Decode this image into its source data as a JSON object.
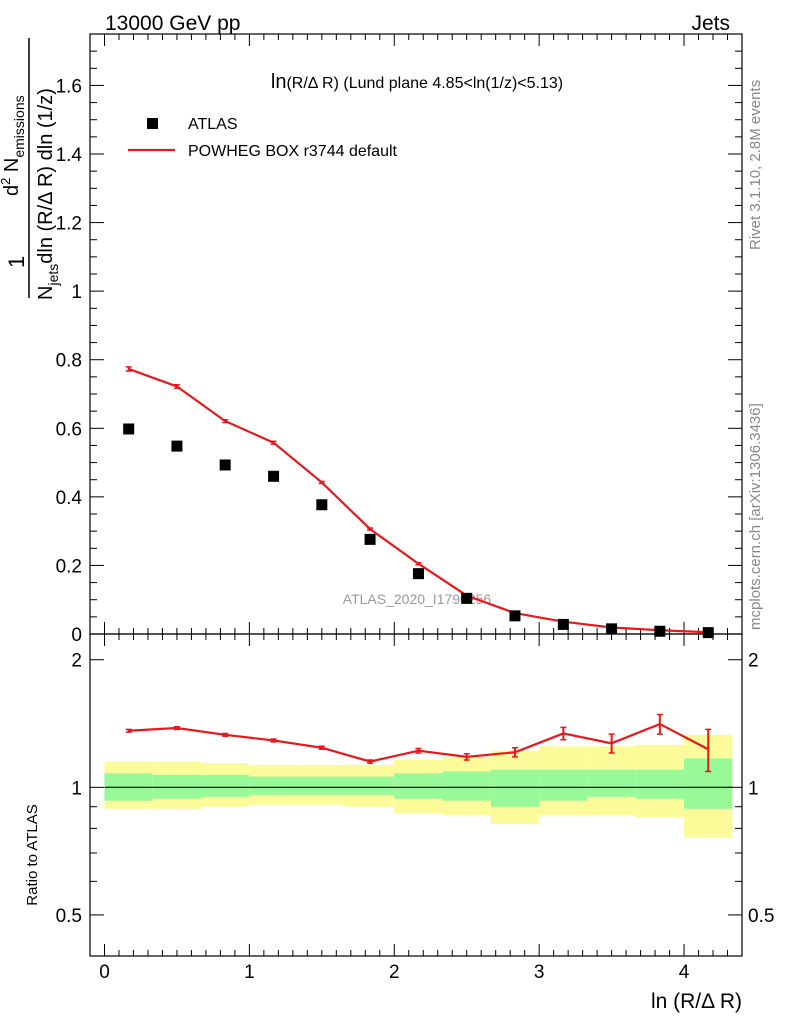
{
  "header": {
    "left": "13000 GeV pp",
    "right": "Jets"
  },
  "chart_data": {
    "type": "scatter",
    "title_main": "ln",
    "title_rest": "(R/Δ R) (Lund plane 4.85<ln(1/z)<5.13)",
    "watermark": "ATLAS_2020_I1790256",
    "side_label_top": "Rivet 3.1.10,  2.8M events",
    "side_label_bottom": "mcplots.cern.ch [arXiv:1306.3436]",
    "xlabel": "ln (R/Δ R)",
    "ylabel_top": {
      "one": "1",
      "n": "N",
      "jets": "jets",
      "denom_rest": "dln (R/Δ R) dln (1/z)",
      "num_d": "d",
      "num_sup": "2",
      "num_n": " N",
      "emissions": "emissions"
    },
    "ylabel_ratio": "Ratio to ATLAS",
    "xlim": [
      -0.1,
      4.4
    ],
    "ylim_main": [
      0,
      1.75
    ],
    "ylim_ratio": [
      0.4,
      2.3
    ],
    "x_ticks": [
      "0",
      "1",
      "2",
      "3",
      "4"
    ],
    "y_ticks_main": [
      "0",
      "0.2",
      "0.4",
      "0.6",
      "0.8",
      "1",
      "1.2",
      "1.4",
      "1.6"
    ],
    "y_ticks_ratio": [
      "0.5",
      "1",
      "2"
    ],
    "legend": {
      "data_label": "ATLAS",
      "mc_label": "POWHEG BOX r3744 default"
    },
    "colors": {
      "mc": "#e8171b",
      "band_inner": "#98f999",
      "band_outer": "#fbfb99",
      "data": "#000000"
    },
    "bins": [
      [
        0.0,
        0.333
      ],
      [
        0.333,
        0.667
      ],
      [
        0.667,
        1.0
      ],
      [
        1.0,
        1.333
      ],
      [
        1.333,
        1.667
      ],
      [
        1.667,
        2.0
      ],
      [
        2.0,
        2.333
      ],
      [
        2.333,
        2.667
      ],
      [
        2.667,
        3.0
      ],
      [
        3.0,
        3.333
      ],
      [
        3.333,
        3.667
      ],
      [
        3.667,
        4.0
      ],
      [
        4.0,
        4.333
      ]
    ],
    "x": [
      0.167,
      0.5,
      0.833,
      1.167,
      1.5,
      1.833,
      2.167,
      2.5,
      2.833,
      3.167,
      3.5,
      3.833,
      4.167
    ],
    "data_values": [
      0.598,
      0.548,
      0.493,
      0.46,
      0.377,
      0.276,
      0.176,
      0.104,
      0.053,
      0.028,
      0.015,
      0.008,
      0.004
    ],
    "mc_values": [
      0.773,
      0.722,
      0.621,
      0.558,
      0.442,
      0.306,
      0.205,
      0.112,
      0.061,
      0.036,
      0.019,
      0.011,
      0.005
    ],
    "mc_errors": [
      0.006,
      0.005,
      0.004,
      0.004,
      0.003,
      0.003,
      0.003,
      0.002,
      0.002,
      0.002,
      0.001,
      0.001,
      0.001
    ],
    "ratio_values": [
      1.36,
      1.38,
      1.33,
      1.29,
      1.24,
      1.15,
      1.22,
      1.18,
      1.21,
      1.34,
      1.27,
      1.41,
      1.23
    ],
    "ratio_errors": [
      0.01,
      0.01,
      0.01,
      0.01,
      0.01,
      0.01,
      0.015,
      0.02,
      0.03,
      0.045,
      0.065,
      0.075,
      0.14
    ],
    "band_inner": [
      [
        0.93,
        1.08
      ],
      [
        0.94,
        1.07
      ],
      [
        0.95,
        1.07
      ],
      [
        0.96,
        1.06
      ],
      [
        0.96,
        1.06
      ],
      [
        0.96,
        1.06
      ],
      [
        0.94,
        1.08
      ],
      [
        0.93,
        1.09
      ],
      [
        0.9,
        1.1
      ],
      [
        0.93,
        1.1
      ],
      [
        0.95,
        1.1
      ],
      [
        0.94,
        1.1
      ],
      [
        0.89,
        1.17
      ]
    ],
    "band_outer": [
      [
        0.89,
        1.15
      ],
      [
        0.89,
        1.15
      ],
      [
        0.9,
        1.14
      ],
      [
        0.91,
        1.13
      ],
      [
        0.91,
        1.13
      ],
      [
        0.9,
        1.13
      ],
      [
        0.87,
        1.16
      ],
      [
        0.86,
        1.18
      ],
      [
        0.82,
        1.22
      ],
      [
        0.86,
        1.25
      ],
      [
        0.86,
        1.25
      ],
      [
        0.85,
        1.26
      ],
      [
        0.76,
        1.33
      ]
    ]
  }
}
